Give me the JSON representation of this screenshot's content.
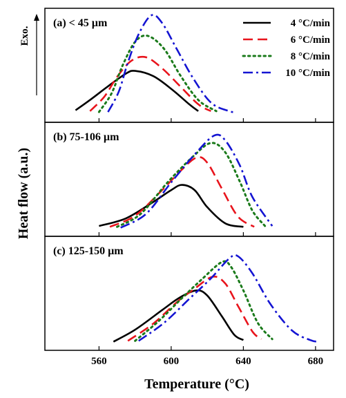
{
  "chart_data": {
    "type": "line",
    "xlabel": "Temperature (°C)",
    "ylabel": "Heat flow (a.u.)",
    "exo_label": "Exo.",
    "xlim": [
      530,
      690
    ],
    "xticks": [
      560,
      600,
      640,
      680
    ],
    "tick_labels": [
      "560",
      "600",
      "640",
      "680"
    ],
    "legend": {
      "placement": "top-right",
      "entries": [
        {
          "label": "4 °C/min",
          "color": "#000000",
          "dash": "solid"
        },
        {
          "label": "6 °C/min",
          "color": "#e8141c",
          "dash": "dashed"
        },
        {
          "label": "8 °C/min",
          "color": "#1a7a1a",
          "dash": "dotted"
        },
        {
          "label": "10 °C/min",
          "color": "#1414d2",
          "dash": "dashdot"
        }
      ]
    },
    "panels": [
      {
        "label": "(a) < 45 µm",
        "series": [
          {
            "rate": "4 °C/min",
            "x": [
              547,
              555,
              565,
              575,
              580,
              590,
              600,
              610,
              615
            ],
            "y": [
              0.06,
              0.18,
              0.34,
              0.49,
              0.52,
              0.46,
              0.31,
              0.13,
              0.05
            ]
          },
          {
            "rate": "6 °C/min",
            "x": [
              555,
              563,
              570,
              578,
              586,
              595,
              605,
              615,
              622
            ],
            "y": [
              0.05,
              0.22,
              0.45,
              0.64,
              0.68,
              0.55,
              0.34,
              0.13,
              0.05
            ]
          },
          {
            "rate": "8 °C/min",
            "x": [
              560,
              567,
              573,
              580,
              587,
              596,
              605,
              615,
              625
            ],
            "y": [
              0.04,
              0.26,
              0.58,
              0.86,
              0.93,
              0.78,
              0.47,
              0.18,
              0.05
            ]
          },
          {
            "rate": "10 °C/min",
            "x": [
              565,
              571,
              576,
              582,
              589,
              595,
              603,
              612,
              622,
              632,
              636
            ],
            "y": [
              0.04,
              0.28,
              0.62,
              0.95,
              1.17,
              1.08,
              0.78,
              0.44,
              0.15,
              0.05,
              0.04
            ]
          }
        ]
      },
      {
        "label": "(b) 75-106 µm",
        "series": [
          {
            "rate": "4 °C/min",
            "x": [
              560,
              575,
              590,
              600,
              606,
              613,
              620,
              630,
              640
            ],
            "y": [
              0.04,
              0.13,
              0.32,
              0.46,
              0.52,
              0.46,
              0.26,
              0.07,
              0.03
            ]
          },
          {
            "rate": "6 °C/min",
            "x": [
              566,
              580,
              595,
              605,
              614,
              620,
              628,
              637,
              646
            ],
            "y": [
              0.03,
              0.16,
              0.46,
              0.68,
              0.84,
              0.78,
              0.48,
              0.15,
              0.03
            ]
          },
          {
            "rate": "8 °C/min",
            "x": [
              570,
              583,
              598,
              612,
              622,
              630,
              638,
              645,
              652
            ],
            "y": [
              0.03,
              0.18,
              0.55,
              0.85,
              1.01,
              0.9,
              0.56,
              0.22,
              0.04
            ]
          },
          {
            "rate": "10 °C/min",
            "x": [
              572,
              586,
              600,
              614,
              624,
              630,
              638,
              645,
              656
            ],
            "y": [
              0.02,
              0.18,
              0.55,
              0.9,
              1.1,
              1.04,
              0.75,
              0.38,
              0.04
            ]
          }
        ]
      },
      {
        "label": "(c) 125-150 µm",
        "series": [
          {
            "rate": "4 °C/min",
            "x": [
              568,
              580,
              595,
              605,
              614,
              620,
              628,
              635,
              640
            ],
            "y": [
              0.02,
              0.16,
              0.39,
              0.54,
              0.62,
              0.56,
              0.32,
              0.1,
              0.04
            ]
          },
          {
            "rate": "6 °C/min",
            "x": [
              576,
              590,
              603,
              613,
              623,
              630,
              637,
              645,
              650
            ],
            "y": [
              0.03,
              0.23,
              0.48,
              0.64,
              0.78,
              0.7,
              0.44,
              0.14,
              0.05
            ]
          },
          {
            "rate": "8 °C/min",
            "x": [
              580,
              593,
              606,
              617,
              628,
              633,
              640,
              648,
              656
            ],
            "y": [
              0.03,
              0.26,
              0.53,
              0.75,
              0.95,
              0.9,
              0.62,
              0.24,
              0.05
            ]
          },
          {
            "rate": "10 °C/min",
            "x": [
              582,
              596,
              610,
              622,
              632,
              637,
              645,
              655,
              667,
              677,
              681
            ],
            "y": [
              0.03,
              0.24,
              0.52,
              0.76,
              0.99,
              1.02,
              0.82,
              0.46,
              0.15,
              0.04,
              0.02
            ]
          }
        ]
      }
    ]
  }
}
